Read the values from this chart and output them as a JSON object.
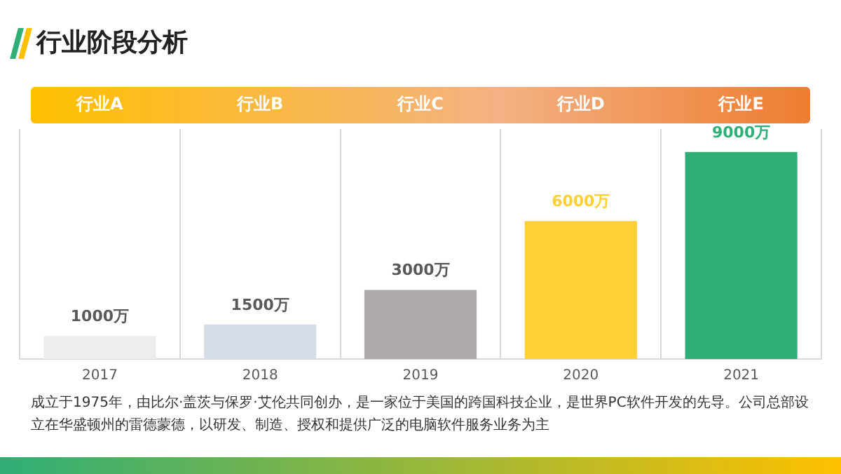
{
  "chart_data": {
    "type": "bar",
    "title": "行业阶段分析",
    "categories": [
      "2017",
      "2018",
      "2019",
      "2020",
      "2021"
    ],
    "values": [
      1000,
      1500,
      3000,
      6000,
      9000
    ],
    "value_labels": [
      "1000万",
      "1500万",
      "3000万",
      "6000万",
      "9000万"
    ],
    "colors": [
      "#ededed",
      "#d6dce5",
      "#aeaaaa",
      "#ffd033",
      "#2fae76"
    ],
    "annotations": [
      "行业A",
      "行业B",
      "行业C",
      "行业D",
      "行业E",
      "成立于1975年，由比尔·盖茨与保罗·艾伦共同创办，是一家位于美国的跨国科技企业，是世界PC软件开发的先导。公司总部设立在华盛顿州的雷德蒙德，以研发、制造、授权和提供广泛的电脑软件服务业务为主"
    ],
    "grid": "x"
  }
}
